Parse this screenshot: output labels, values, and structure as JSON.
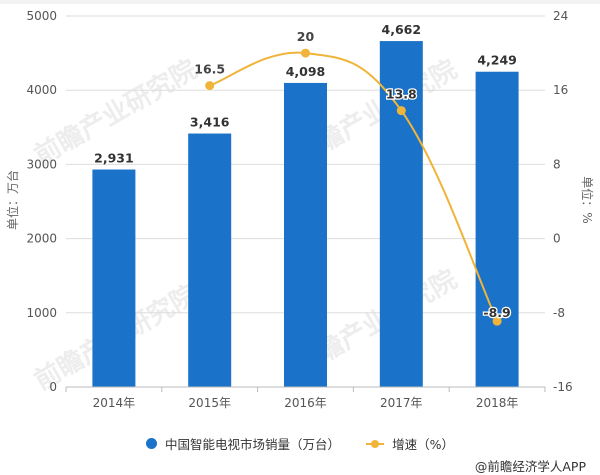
{
  "chart_data": {
    "type": "bar+line",
    "title": "",
    "categories": [
      "2014年",
      "2015年",
      "2016年",
      "2017年",
      "2018年"
    ],
    "series": [
      {
        "name": "中国智能电视市场销量（万台）",
        "type": "bar",
        "axis": "left",
        "color": "#1a73c8",
        "values": [
          2931,
          3416,
          4098,
          4662,
          4249
        ],
        "labels": [
          "2,931",
          "3,416",
          "4,098",
          "4,662",
          "4,249"
        ]
      },
      {
        "name": "增速（%）",
        "type": "line",
        "axis": "right",
        "color": "#f0b43a",
        "values": [
          null,
          16.5,
          20,
          13.8,
          -8.9
        ],
        "labels": [
          "",
          "16.5",
          "20",
          "13.8",
          "-8.9"
        ]
      }
    ],
    "left_axis": {
      "label": "单位：万台",
      "ticks": [
        0,
        1000,
        2000,
        3000,
        4000,
        5000
      ],
      "range": [
        0,
        5000
      ]
    },
    "right_axis": {
      "label": "单位：%",
      "ticks": [
        -16,
        -8,
        0,
        8,
        16,
        24
      ],
      "range": [
        -16,
        24
      ]
    },
    "grid": true,
    "legend_position": "bottom"
  },
  "legend": {
    "bar_label": "中国智能电视市场销量（万台）",
    "line_label": "增速（%）"
  },
  "axis_titles": {
    "left": "单位：万台",
    "right": "单位：%"
  },
  "credit": "@前瞻经济学人APP",
  "watermark": "前瞻产业研究院",
  "colors": {
    "bar": "#1a73c8",
    "line": "#f0b43a",
    "grid": "#dddddd",
    "text": "#555555"
  }
}
